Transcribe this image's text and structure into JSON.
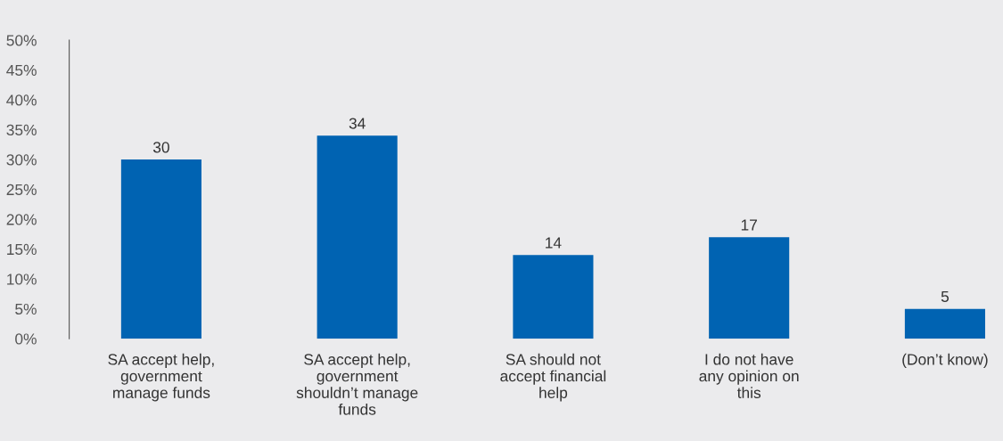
{
  "chart_data": {
    "type": "bar",
    "categories": [
      "SA accept help,\ngovernment\nmanage funds",
      "SA accept help,\ngovernment\nshouldn’t manage\nfunds",
      "SA should not\naccept financial\nhelp",
      "I do not have\nany opinion on\nthis",
      "(Don’t know)"
    ],
    "values": [
      30,
      34,
      14,
      17,
      5
    ],
    "color": "#0063b2",
    "ylim": [
      0,
      50
    ],
    "yticks": [
      {
        "value": 0,
        "label": "0%"
      },
      {
        "value": 5,
        "label": "5%"
      },
      {
        "value": 10,
        "label": "10%"
      },
      {
        "value": 15,
        "label": "15%"
      },
      {
        "value": 20,
        "label": "20%"
      },
      {
        "value": 25,
        "label": "25%"
      },
      {
        "value": 30,
        "label": "30%"
      },
      {
        "value": 35,
        "label": "35%"
      },
      {
        "value": 40,
        "label": "40%"
      },
      {
        "value": 45,
        "label": "45%"
      },
      {
        "value": 50,
        "label": "50%"
      }
    ],
    "data_labels": true,
    "grid": false,
    "legend": false
  }
}
